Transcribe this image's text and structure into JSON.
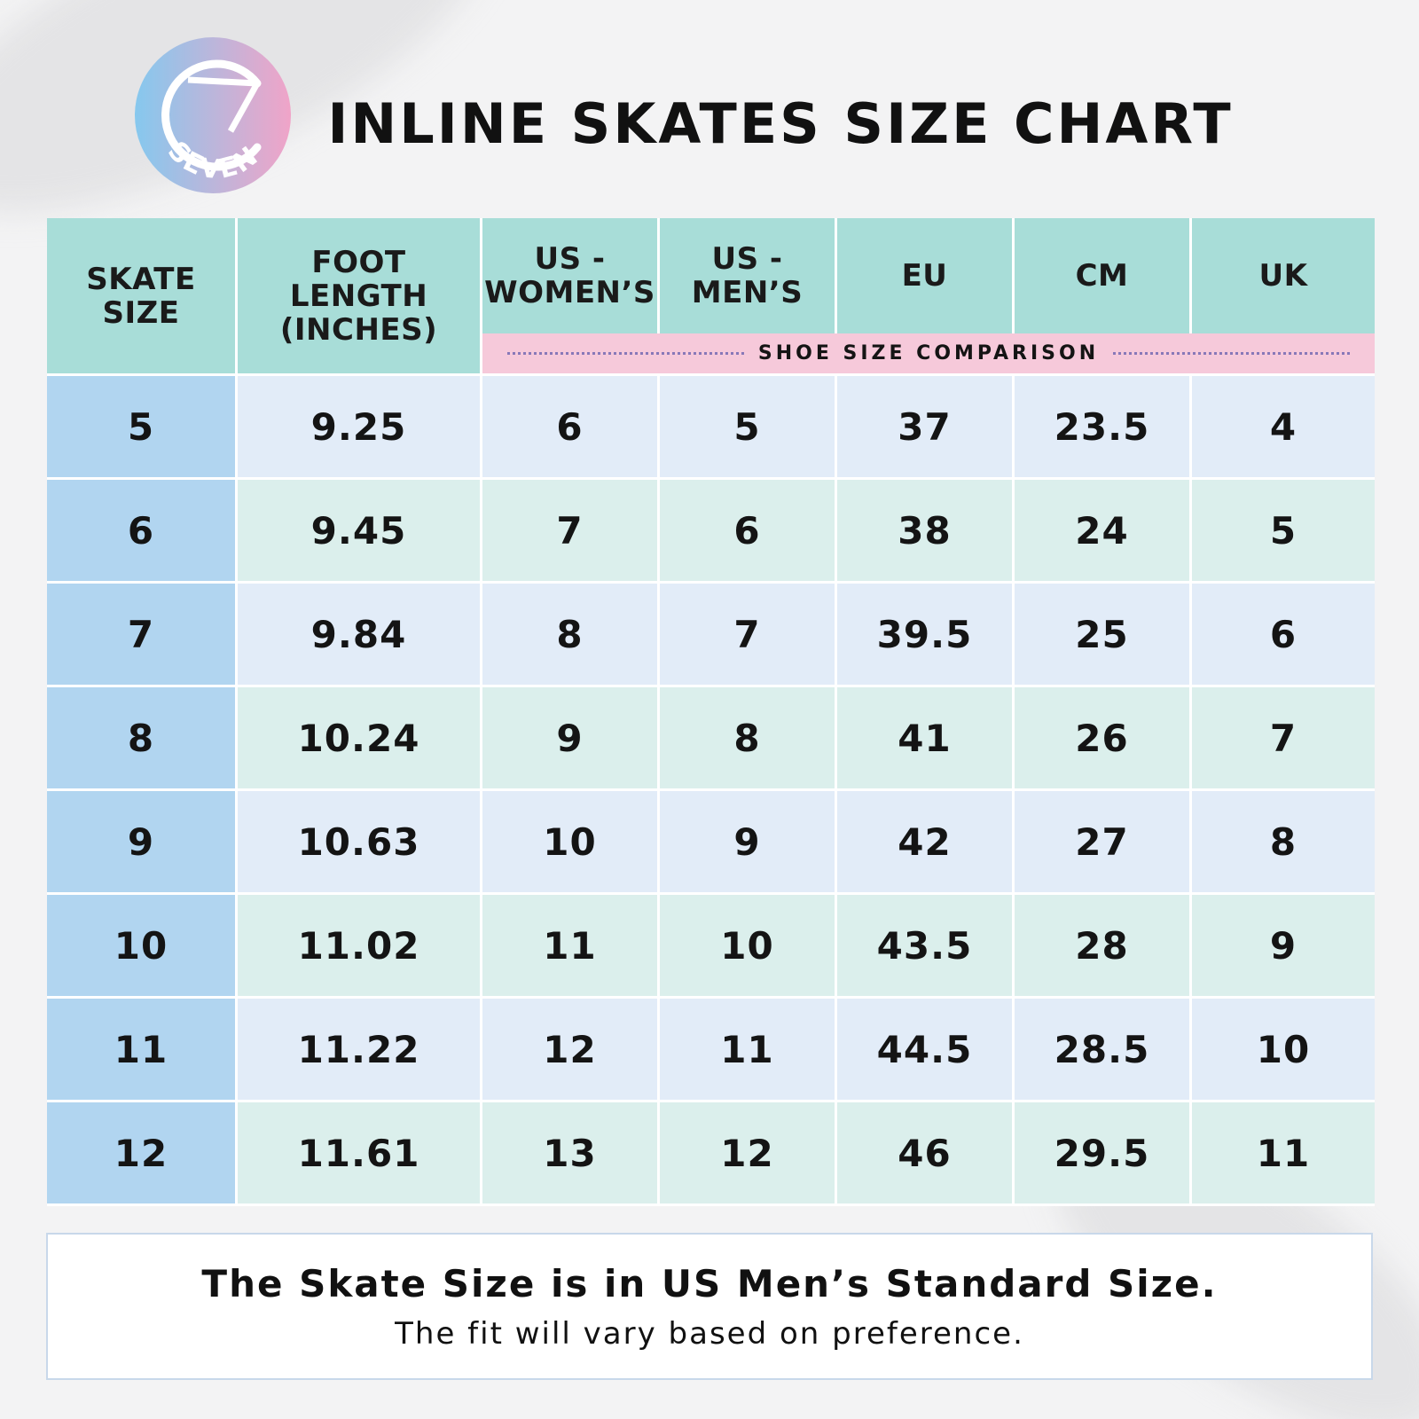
{
  "logo": {
    "text": "SEVEN",
    "icon": "seven-brand-logo"
  },
  "title": "INLINE SKATES SIZE CHART",
  "table": {
    "headers": {
      "skate_size": "SKATE SIZE",
      "foot_length": "FOOT LENGTH (INCHES)",
      "us_womens": "US - WOMEN’S",
      "us_mens": "US - MEN’S",
      "eu": "EU",
      "cm": "CM",
      "uk": "UK"
    },
    "subheader": "SHOE SIZE COMPARISON",
    "rows": [
      [
        "5",
        "9.25",
        "6",
        "5",
        "37",
        "23.5",
        "4"
      ],
      [
        "6",
        "9.45",
        "7",
        "6",
        "38",
        "24",
        "5"
      ],
      [
        "7",
        "9.84",
        "8",
        "7",
        "39.5",
        "25",
        "6"
      ],
      [
        "8",
        "10.24",
        "9",
        "8",
        "41",
        "26",
        "7"
      ],
      [
        "9",
        "10.63",
        "10",
        "9",
        "42",
        "27",
        "8"
      ],
      [
        "10",
        "11.02",
        "11",
        "10",
        "43.5",
        "28",
        "9"
      ],
      [
        "11",
        "11.22",
        "12",
        "11",
        "44.5",
        "28.5",
        "10"
      ],
      [
        "12",
        "11.61",
        "13",
        "12",
        "46",
        "29.5",
        "11"
      ]
    ]
  },
  "note": {
    "main": "The Skate Size is in US Men’s Standard Size.",
    "sub": "The fit will vary based on preference."
  },
  "colors": {
    "header": "#a8ddd8",
    "subheader": "#f6c9da",
    "skate_col": "#b1d5f0",
    "row_blue": "#e2ecf8",
    "row_mint": "#dbefec",
    "logo_gradient_start": "#86c8ee",
    "logo_gradient_end": "#f0a4c8"
  }
}
